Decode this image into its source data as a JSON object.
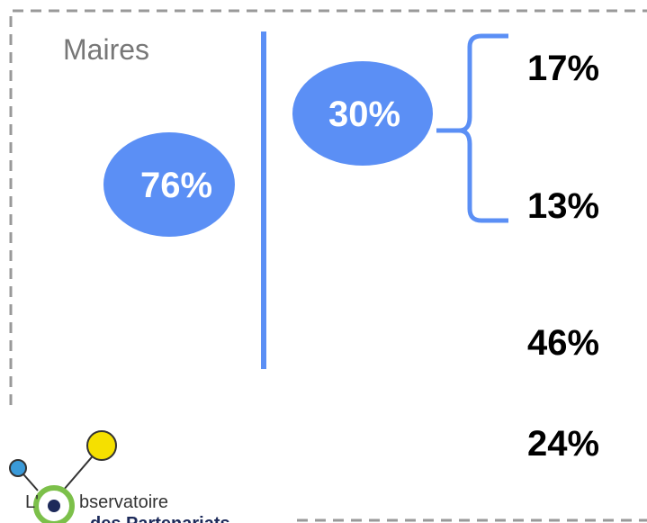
{
  "title": "Maires",
  "bubbles": [
    "76%",
    "30%"
  ],
  "values": [
    "17%",
    "13%",
    "46%",
    "24%"
  ],
  "logo": {
    "prefix": "L'",
    "word": "bservatoire",
    "subtitle": "des Partenariats"
  }
}
